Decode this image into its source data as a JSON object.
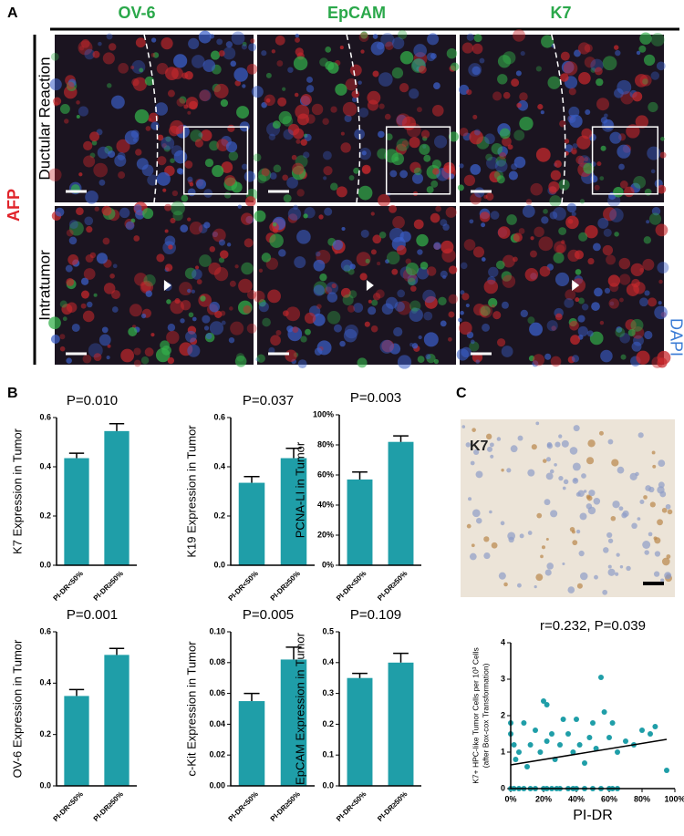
{
  "panel_labels": [
    "A",
    "B",
    "C"
  ],
  "panel_a": {
    "columns": [
      "OV-6",
      "EpCAM",
      "K7"
    ],
    "rows": [
      "Ductular Reaction",
      "Intratumor"
    ],
    "left_stain": "AFP",
    "right_stain": "DAPI"
  },
  "panel_c_image_label": "K7",
  "chart_data": [
    {
      "type": "bar",
      "title": "P=0.010",
      "y_label": "K7 Expression in Tumor",
      "categories": [
        "PI-DR<50%",
        "PI-DR≥50%"
      ],
      "series": [
        {
          "color": "#1f9ea8",
          "values": [
            0.435,
            0.545
          ],
          "errors": [
            0.02,
            0.03
          ]
        }
      ],
      "ylim": [
        0,
        0.6
      ],
      "yticks": [
        {
          "value": 0,
          "label": "0.0"
        },
        0.2,
        0.4,
        0.6
      ]
    },
    {
      "type": "bar",
      "title": "P=0.037",
      "y_label": "K19 Expression in Tumor",
      "categories": [
        "PI-DR<50%",
        "PI-DR≥50%"
      ],
      "series": [
        {
          "color": "#1f9ea8",
          "values": [
            0.335,
            0.435
          ],
          "errors": [
            0.025,
            0.04
          ]
        }
      ],
      "ylim": [
        0,
        0.6
      ],
      "yticks": [
        {
          "value": 0,
          "label": "0.0"
        },
        0.2,
        0.4,
        0.6
      ]
    },
    {
      "type": "bar",
      "title": "P=0.003",
      "y_label": "PCNA-LI  in Tumor",
      "categories": [
        "PI-DR<50%",
        "PI-DR≥50%"
      ],
      "series": [
        {
          "color": "#1f9ea8",
          "values": [
            57,
            82
          ],
          "errors": [
            5,
            4
          ]
        }
      ],
      "ylim": [
        0,
        100
      ],
      "yticks": [
        {
          "value": 0,
          "label": "0%"
        },
        {
          "value": 20,
          "label": "20%"
        },
        {
          "value": 40,
          "label": "40%"
        },
        {
          "value": 60,
          "label": "60%"
        },
        {
          "value": 80,
          "label": "80%"
        },
        {
          "value": 100,
          "label": "100%"
        }
      ]
    },
    {
      "type": "bar",
      "title": "P=0.001",
      "y_label": "OV-6 Expression in Tumor",
      "categories": [
        "PI-DR<50%",
        "PI-DR≥50%"
      ],
      "series": [
        {
          "color": "#1f9ea8",
          "values": [
            0.35,
            0.51
          ],
          "errors": [
            0.025,
            0.025
          ]
        }
      ],
      "ylim": [
        0,
        0.6
      ],
      "yticks": [
        {
          "value": 0,
          "label": "0.0"
        },
        0.2,
        0.4,
        0.6
      ]
    },
    {
      "type": "bar",
      "title": "P=0.005",
      "y_label": "c-Kit Expression in Tumor",
      "categories": [
        "PI-DR<50%",
        "PI-DR≥50%"
      ],
      "series": [
        {
          "color": "#1f9ea8",
          "values": [
            0.055,
            0.082
          ],
          "errors": [
            0.005,
            0.008
          ]
        }
      ],
      "ylim": [
        0,
        0.1
      ],
      "yticks": [
        {
          "value": 0,
          "label": "0.00"
        },
        {
          "value": 0.02,
          "label": "0.02"
        },
        {
          "value": 0.04,
          "label": "0.04"
        },
        {
          "value": 0.06,
          "label": "0.06"
        },
        {
          "value": 0.08,
          "label": "0.08"
        },
        {
          "value": 0.1,
          "label": "0.10"
        }
      ]
    },
    {
      "type": "bar",
      "title": "P=0.109",
      "y_label": "EpCAM Expression in Tumor",
      "categories": [
        "PI-DR<50%",
        "PI-DR≥50%"
      ],
      "series": [
        {
          "color": "#1f9ea8",
          "values": [
            0.35,
            0.4
          ],
          "errors": [
            0.015,
            0.03
          ]
        }
      ],
      "ylim": [
        0,
        0.5
      ],
      "yticks": [
        {
          "value": 0,
          "label": "0.0"
        },
        0.1,
        0.2,
        0.3,
        0.4,
        0.5
      ]
    },
    {
      "type": "scatter",
      "title": "r=0.232, P=0.039",
      "y_label": [
        "K7+ HPC-like Tumor Cells per 10³ Cells",
        "(after Box-cox Transformation)"
      ],
      "x_label": "PI-DR",
      "color": "#1f9ea8",
      "x": [
        0,
        2,
        5,
        8,
        12,
        15,
        20,
        22,
        25,
        28,
        30,
        35,
        38,
        40,
        45,
        50,
        55,
        60,
        62,
        65,
        0,
        0,
        2,
        3,
        5,
        8,
        10,
        12,
        15,
        18,
        20,
        22,
        22,
        25,
        27,
        30,
        32,
        35,
        38,
        40,
        42,
        45,
        48,
        50,
        52,
        55,
        57,
        60,
        62,
        65,
        70,
        75,
        80,
        85,
        88,
        95
      ],
      "values": [
        0,
        0,
        0,
        0,
        0,
        0,
        0,
        0,
        0,
        0,
        0,
        0,
        0,
        0,
        0,
        0,
        0,
        0,
        0,
        0,
        1.8,
        1.5,
        1.2,
        0.8,
        1.0,
        1.8,
        0.6,
        1.2,
        1.6,
        1.0,
        2.4,
        2.3,
        1.3,
        1.5,
        0.8,
        1.2,
        1.9,
        1.5,
        1.0,
        1.9,
        1.2,
        0.7,
        1.4,
        1.8,
        1.1,
        3.05,
        2.1,
        1.4,
        1.8,
        1.0,
        1.3,
        1.2,
        1.6,
        1.5,
        1.7,
        0.5
      ],
      "xlim": [
        0,
        100
      ],
      "xticks": [
        {
          "value": 0,
          "label": "0%"
        },
        {
          "value": 20,
          "label": "20%"
        },
        {
          "value": 40,
          "label": "40%"
        },
        {
          "value": 60,
          "label": "60%"
        },
        {
          "value": 80,
          "label": "80%"
        },
        {
          "value": 100,
          "label": "100%"
        }
      ],
      "ylim": [
        0,
        4
      ],
      "yticks": [
        0,
        1,
        2,
        3,
        4
      ],
      "fit_line": {
        "x": [
          0,
          95
        ],
        "y": [
          0.65,
          1.35
        ]
      }
    }
  ]
}
